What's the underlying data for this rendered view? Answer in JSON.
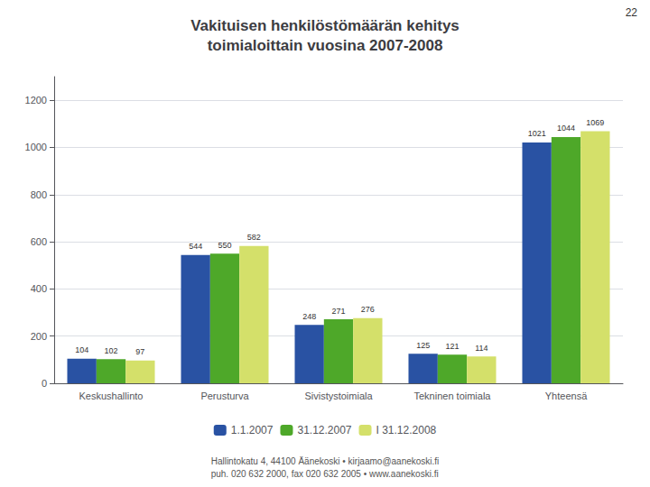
{
  "chart_data": {
    "type": "bar",
    "title": "Vakituisen henkilöstömäärän kehitys\ntoimialoittain vuosina 2007-2008",
    "annotations": [
      "22",
      "Hallintokatu 4, 44100 Äänekoski • kirjaamo@aanekoski.fi\npuh. 020 632 2000, fax 020 632 2005 • www.aanekoski.fi"
    ],
    "categories": [
      "Keskushallinto",
      "Perusturva",
      "Sivistystoimiala",
      "Tekninen toimiala",
      "Yhteensä"
    ],
    "series": [
      {
        "name": "1.1.2007",
        "color": "#2952a3",
        "values": [
          104,
          544,
          248,
          125,
          1021
        ]
      },
      {
        "name": "31.12.2007",
        "color": "#4ea829",
        "values": [
          102,
          550,
          271,
          121,
          1044
        ]
      },
      {
        "name": "I 31.12.2008",
        "color": "#d4e06a",
        "values": [
          97,
          582,
          276,
          114,
          1069
        ]
      }
    ],
    "ylim": [
      0,
      1300
    ],
    "yticks": [
      0,
      200,
      400,
      600,
      800,
      1000,
      1200
    ],
    "grid": true,
    "legend": "bottom",
    "data_labels": true
  }
}
